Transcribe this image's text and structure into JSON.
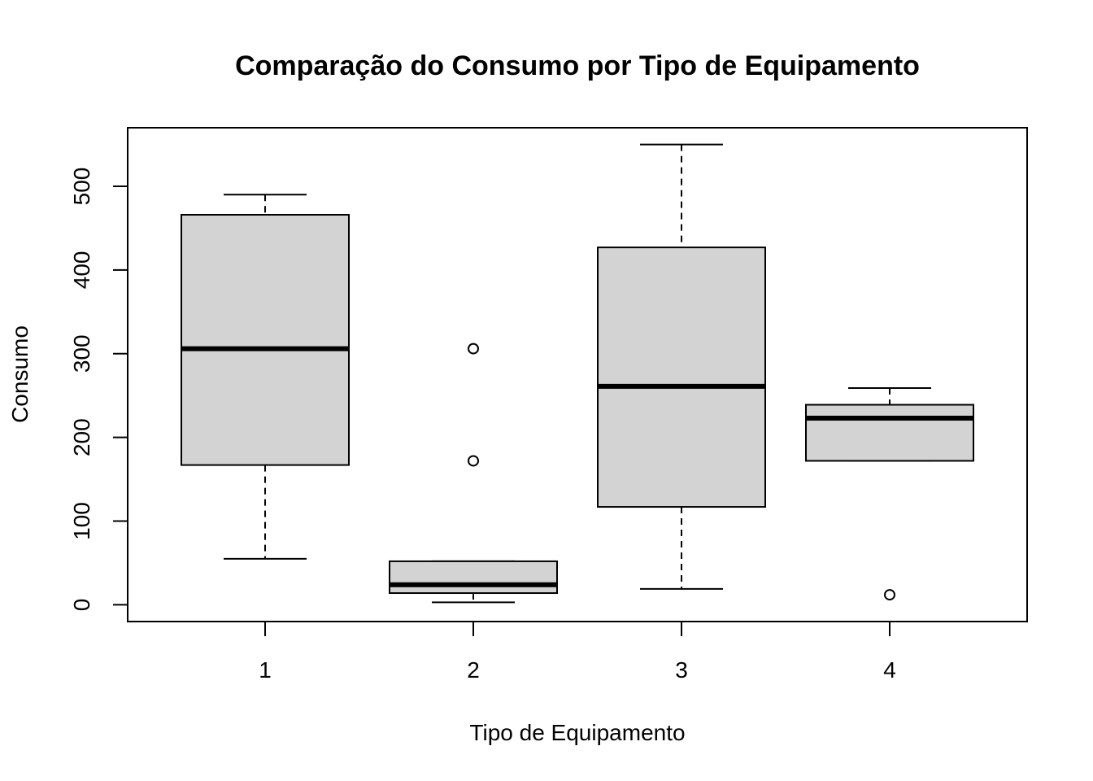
{
  "chart_data": {
    "type": "boxplot",
    "title": "Comparação do Consumo por Tipo de Equipamento",
    "xlabel": "Tipo de Equipamento",
    "ylabel": "Consumo",
    "ylim": [
      -20,
      570
    ],
    "yticks": [
      0,
      100,
      200,
      300,
      400,
      500
    ],
    "ytick_labels": [
      "0",
      "100",
      "200",
      "300",
      "400",
      "500"
    ],
    "categories": [
      "1",
      "2",
      "3",
      "4"
    ],
    "grid": false,
    "box_color": "#d3d3d3",
    "line_color": "#000000",
    "boxes": [
      {
        "category": "1",
        "whisker_low": 55,
        "q1": 167,
        "median": 306,
        "q3": 466,
        "whisker_high": 490,
        "outliers": []
      },
      {
        "category": "2",
        "whisker_low": 3,
        "q1": 14,
        "median": 24,
        "q3": 52,
        "whisker_high": 52,
        "outliers": [
          172,
          306
        ]
      },
      {
        "category": "3",
        "whisker_low": 19,
        "q1": 117,
        "median": 261,
        "q3": 427,
        "whisker_high": 550,
        "outliers": []
      },
      {
        "category": "4",
        "whisker_low": 172,
        "q1": 172,
        "median": 223,
        "q3": 239,
        "whisker_high": 259,
        "outliers": [
          12
        ]
      }
    ]
  }
}
